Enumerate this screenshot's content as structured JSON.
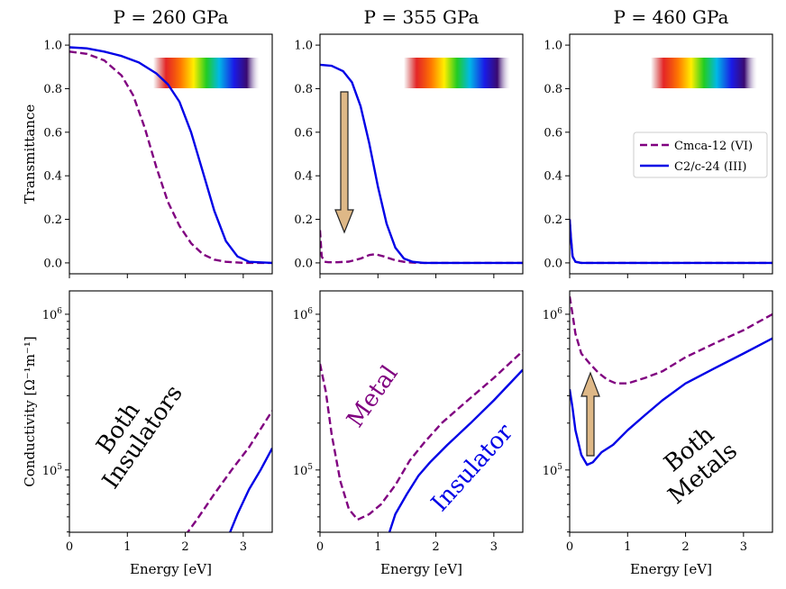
{
  "colors": {
    "cmca": "#800080",
    "c2c": "#0000e6",
    "arrow_fill": "#deb887",
    "arrow_stroke": "#222222"
  },
  "chart_data": {
    "type": "line",
    "xlabel": "Energy [eV]",
    "top_ylabel": "Transmittance",
    "bottom_ylabel": "Conductivity [Ω⁻¹m⁻¹]",
    "xlim": [
      0,
      3.5
    ],
    "top_ylim": [
      -0.05,
      1.05
    ],
    "bottom_ylim_log10": [
      4.6,
      6.15
    ],
    "x_ticks": [
      0,
      1,
      2,
      3
    ],
    "top_y_ticks": [
      0.0,
      0.2,
      0.4,
      0.6,
      0.8,
      1.0
    ],
    "bottom_y_ticks": [
      {
        "value": 100000,
        "exp": "5"
      },
      {
        "value": 1000000,
        "exp": "6"
      }
    ],
    "legend": [
      {
        "name": "Cmca-12 (VI)",
        "style": "dashed",
        "color": "#800080"
      },
      {
        "name": "C2/c-24 (III)",
        "style": "solid",
        "color": "#0000e6"
      }
    ],
    "panels": [
      {
        "title": "P = 260 GPa",
        "transmittance": {
          "Cmca-12 (VI)": {
            "x": [
              0,
              0.3,
              0.6,
              0.9,
              1.1,
              1.3,
              1.5,
              1.7,
              1.9,
              2.1,
              2.3,
              2.5,
              2.7,
              3.0,
              3.5
            ],
            "y": [
              0.97,
              0.96,
              0.93,
              0.86,
              0.77,
              0.62,
              0.44,
              0.28,
              0.17,
              0.09,
              0.04,
              0.015,
              0.005,
              0.0,
              0.0
            ]
          },
          "C2/c-24 (III)": {
            "x": [
              0,
              0.3,
              0.6,
              0.9,
              1.2,
              1.5,
              1.7,
              1.9,
              2.1,
              2.3,
              2.5,
              2.7,
              2.9,
              3.1,
              3.5
            ],
            "y": [
              0.99,
              0.985,
              0.97,
              0.95,
              0.92,
              0.87,
              0.82,
              0.74,
              0.6,
              0.42,
              0.24,
              0.1,
              0.03,
              0.005,
              0.0
            ]
          }
        },
        "conductivity": {
          "Cmca-12 (VI)": {
            "x": [
              2.0,
              2.2,
              2.5,
              2.8,
              3.1,
              3.5
            ],
            "y": [
              38000,
              48000,
              70000,
              100000,
              140000,
              240000
            ]
          },
          "C2/c-24 (III)": {
            "x": [
              2.75,
              2.9,
              3.1,
              3.3,
              3.5
            ],
            "y": [
              38000,
              52000,
              75000,
              100000,
              138000
            ]
          }
        },
        "annotations": [
          {
            "text": "Both",
            "color": "#000000"
          },
          {
            "text": "Insulators",
            "color": "#000000"
          }
        ]
      },
      {
        "title": "P = 355 GPa",
        "transmittance": {
          "Cmca-12 (VI)": {
            "x": [
              0,
              0.03,
              0.08,
              0.15,
              0.3,
              0.5,
              0.7,
              0.85,
              0.95,
              1.1,
              1.3,
              1.5,
              1.7,
              2.0,
              3.5
            ],
            "y": [
              0.15,
              0.03,
              0.005,
              0.003,
              0.003,
              0.006,
              0.02,
              0.036,
              0.04,
              0.03,
              0.012,
              0.003,
              0.0,
              0.0,
              0.0
            ]
          },
          "C2/c-24 (III)": {
            "x": [
              0,
              0.2,
              0.4,
              0.55,
              0.7,
              0.85,
              1.0,
              1.15,
              1.3,
              1.45,
              1.6,
              1.8,
              2.0,
              3.5
            ],
            "y": [
              0.91,
              0.905,
              0.88,
              0.83,
              0.72,
              0.55,
              0.35,
              0.18,
              0.07,
              0.02,
              0.005,
              0.0,
              0.0,
              0.0
            ]
          }
        },
        "conductivity": {
          "Cmca-12 (VI)": {
            "x": [
              0,
              0.1,
              0.2,
              0.35,
              0.5,
              0.65,
              0.85,
              1.05,
              1.3,
              1.55,
              1.8,
              2.1,
              2.5,
              3.0,
              3.5
            ],
            "y": [
              480000,
              320000,
              170000,
              85000,
              56000,
              48000,
              52000,
              60000,
              80000,
              115000,
              150000,
              200000,
              270000,
              390000,
              580000
            ]
          },
          "C2/c-24 (III)": {
            "x": [
              1.18,
              1.3,
              1.5,
              1.7,
              1.9,
              2.2,
              2.6,
              3.0,
              3.5
            ],
            "y": [
              38000,
              52000,
              70000,
              92000,
              112000,
              145000,
              200000,
              280000,
              440000
            ]
          }
        },
        "annotations": [
          {
            "text": "Metal",
            "color": "#800080"
          },
          {
            "text": "Insulator",
            "color": "#0000e6"
          }
        ]
      },
      {
        "title": "P = 460 GPa",
        "transmittance": {
          "Cmca-12 (VI)": {
            "x": [
              0,
              0.02,
              0.05,
              0.1,
              0.2,
              0.5,
              3.5
            ],
            "y": [
              0.2,
              0.12,
              0.03,
              0.005,
              0.0,
              0.0,
              0.0
            ]
          },
          "C2/c-24 (III)": {
            "x": [
              0,
              0.02,
              0.05,
              0.1,
              0.2,
              0.5,
              3.5
            ],
            "y": [
              0.2,
              0.12,
              0.03,
              0.005,
              0.0,
              0.0,
              0.0
            ]
          }
        },
        "conductivity": {
          "Cmca-12 (VI)": {
            "x": [
              0,
              0.05,
              0.1,
              0.2,
              0.35,
              0.5,
              0.65,
              0.8,
              1.0,
              1.3,
              1.6,
              2.0,
              2.5,
              3.0,
              3.5
            ],
            "y": [
              1300000,
              1000000,
              750000,
              560000,
              480000,
              420000,
              380000,
              360000,
              360000,
              390000,
              430000,
              530000,
              650000,
              790000,
              1000000
            ]
          },
          "C2/c-24 (III)": {
            "x": [
              0,
              0.05,
              0.1,
              0.2,
              0.3,
              0.4,
              0.55,
              0.75,
              1.0,
              1.3,
              1.6,
              2.0,
              2.5,
              3.0,
              3.5
            ],
            "y": [
              330000,
              250000,
              180000,
              125000,
              108000,
              112000,
              130000,
              145000,
              180000,
              225000,
              280000,
              360000,
              450000,
              560000,
              700000
            ]
          }
        },
        "annotations": [
          {
            "text": "Both",
            "color": "#000000"
          },
          {
            "text": "Metals",
            "color": "#000000"
          }
        ]
      }
    ]
  }
}
